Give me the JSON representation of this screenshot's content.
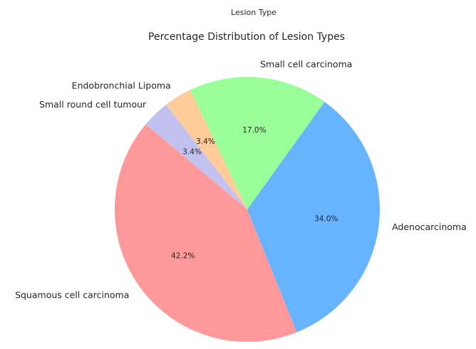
{
  "chart_data": {
    "type": "pie",
    "suptitle": "Lesion Type",
    "title": "Percentage Distribution of Lesion Types",
    "categories": [
      "Squamous cell carcinoma",
      "Adenocarcinoma",
      "Small cell carcinoma",
      "Endobronchial Lipoma",
      "Small round cell tumour"
    ],
    "values": [
      42.2,
      34.0,
      17.0,
      3.4,
      3.4
    ],
    "value_labels": [
      "42.2%",
      "34.0%",
      "17.0%",
      "3.4%",
      "3.4%"
    ],
    "colors": [
      "#ff9999",
      "#66b3ff",
      "#99ff99",
      "#ffcc99",
      "#c2c2f0"
    ],
    "start_angle_deg": 140,
    "direction": "counterclockwise"
  }
}
